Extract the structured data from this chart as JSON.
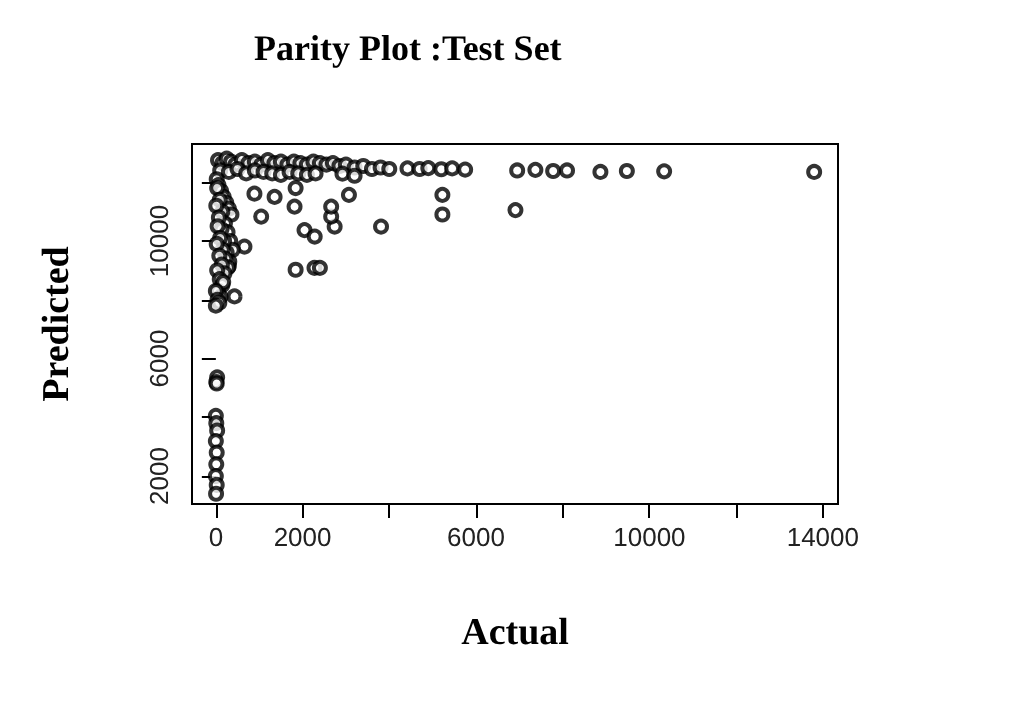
{
  "chart_data": {
    "type": "scatter",
    "title": "Parity Plot :Test Set",
    "xlabel": "Actual",
    "ylabel": "Predicted",
    "xlim": [
      -550,
      14350
    ],
    "ylim": [
      1050,
      13300
    ],
    "xticks": [
      0,
      2000,
      {
        "value": 4000,
        "label": null
      },
      6000,
      {
        "value": 8000,
        "label": null
      },
      10000,
      {
        "value": 12000,
        "label": null
      },
      14000
    ],
    "yticks": [
      2000,
      {
        "value": 4000,
        "label": null
      },
      6000,
      {
        "value": 8000,
        "label": null
      },
      10000,
      {
        "value": 12000,
        "label": null
      }
    ],
    "grid": false,
    "marker": "circle",
    "series": [
      {
        "color": "#000000",
        "x": [
          50,
          150,
          250,
          350,
          450,
          600,
          750,
          900,
          1050,
          1200,
          1350,
          1500,
          1650,
          1800,
          1950,
          2100,
          2250,
          2400,
          2550,
          2700,
          2850,
          3000,
          3200,
          3400,
          3600,
          3800,
          4000,
          100,
          300,
          500,
          700,
          900,
          1100,
          1300,
          1500,
          1700,
          1900,
          2100,
          2300,
          4420,
          4700,
          4900,
          5200,
          5450,
          5750,
          6950,
          7370,
          7780,
          8100,
          8870,
          9480,
          10340,
          13800,
          5225,
          5225,
          6910,
          1840,
          1840,
          2275,
          2400,
          3070,
          2740,
          3810,
          890,
          1355,
          1045,
          660,
          430,
          300,
          1815,
          2045,
          2280,
          2660,
          2660,
          2920,
          3200,
          20,
          60,
          120,
          180,
          240,
          300,
          360,
          30,
          90,
          150,
          210,
          270,
          330,
          390,
          10,
          70,
          130,
          190,
          250,
          310,
          40,
          100,
          160,
          220,
          280,
          20,
          80,
          140,
          200,
          30,
          90,
          150,
          50,
          110,
          170,
          0,
          40,
          80,
          0,
          30,
          10,
          20,
          0,
          10,
          30,
          0,
          20,
          10,
          0,
          20,
          5
        ],
        "values": [
          12750,
          12650,
          12800,
          12700,
          12600,
          12750,
          12650,
          12700,
          12600,
          12750,
          12650,
          12700,
          12600,
          12700,
          12650,
          12600,
          12700,
          12650,
          12600,
          12650,
          12550,
          12600,
          12500,
          12550,
          12450,
          12500,
          12450,
          12400,
          12350,
          12450,
          12300,
          12400,
          12350,
          12300,
          12250,
          12350,
          12300,
          12250,
          12300,
          12470,
          12450,
          12480,
          12440,
          12470,
          12430,
          12400,
          12420,
          12380,
          12400,
          12350,
          12380,
          12370,
          12350,
          11570,
          10900,
          11050,
          11800,
          9020,
          9085,
          9085,
          11570,
          10490,
          10490,
          11610,
          11500,
          10830,
          9810,
          8115,
          9150,
          11170,
          10370,
          10150,
          10830,
          11170,
          12290,
          12220,
          12100,
          11900,
          11700,
          11500,
          11300,
          11100,
          10900,
          11800,
          11400,
          11000,
          10600,
          10300,
          10000,
          9700,
          11200,
          10800,
          10400,
          10000,
          9600,
          9300,
          10500,
          10100,
          9700,
          9400,
          9100,
          9900,
          9500,
          9200,
          8900,
          9000,
          8700,
          8500,
          8300,
          8100,
          8600,
          8300,
          8000,
          7900,
          7800,
          5360,
          5200,
          5150,
          4050,
          3800,
          3550,
          3190,
          2800,
          2400,
          2000,
          1700,
          1400
        ]
      }
    ]
  }
}
